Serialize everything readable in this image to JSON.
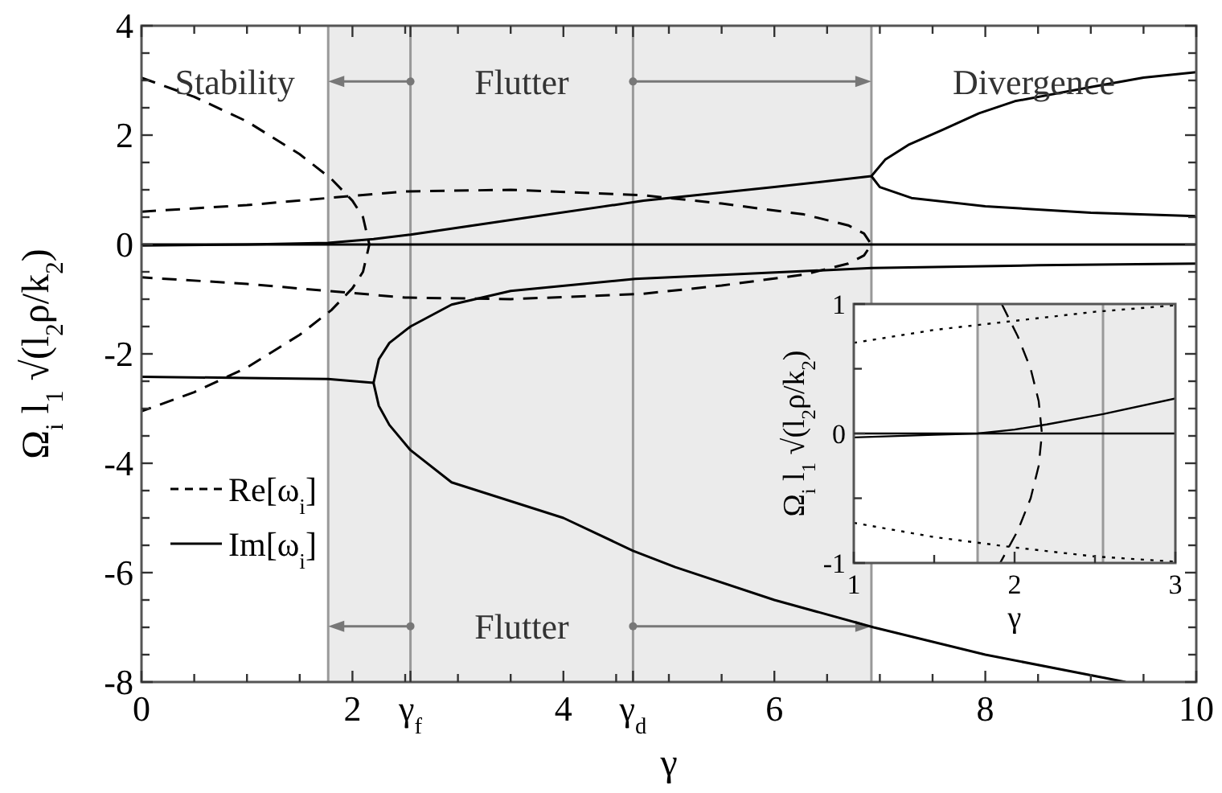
{
  "chart_data": [
    {
      "type": "line",
      "xlabel": "γ",
      "ylabel": "Ω$_{i}$ l$_{1}$ √(l$_{2}$ρ/k$_{2}$)",
      "xlim": [
        0,
        10
      ],
      "ylim": [
        -8,
        4
      ],
      "xticks": [
        0,
        {
          "value": 0.5,
          "label": null
        },
        {
          "value": 1,
          "label": null
        },
        {
          "value": 1.5,
          "label": null
        },
        2,
        {
          "value": 2.5,
          "label": null
        },
        {
          "value": 2.55,
          "label": "γ$_{f}$"
        },
        {
          "value": 3,
          "label": null
        },
        {
          "value": 3.5,
          "label": null
        },
        4,
        {
          "value": 4.5,
          "label": null
        },
        {
          "value": 4.66,
          "label": "γ$_{d}$"
        },
        {
          "value": 5,
          "label": null
        },
        {
          "value": 5.5,
          "label": null
        },
        6,
        {
          "value": 6.5,
          "label": null
        },
        {
          "value": 7,
          "label": null
        },
        {
          "value": 7.5,
          "label": null
        },
        8,
        {
          "value": 8.5,
          "label": null
        },
        {
          "value": 9,
          "label": null
        },
        {
          "value": 9.5,
          "label": null
        },
        10
      ],
      "yticks": [
        -8,
        {
          "value": -7.5,
          "label": null
        },
        {
          "value": -7,
          "label": null
        },
        {
          "value": -6.5,
          "label": null
        },
        -6,
        {
          "value": -5.5,
          "label": null
        },
        {
          "value": -5,
          "label": null
        },
        {
          "value": -4.5,
          "label": null
        },
        -4,
        {
          "value": -3.5,
          "label": null
        },
        {
          "value": -3,
          "label": null
        },
        {
          "value": -2.5,
          "label": null
        },
        -2,
        {
          "value": -1.5,
          "label": null
        },
        {
          "value": -1,
          "label": null
        },
        {
          "value": -0.5,
          "label": null
        },
        0,
        {
          "value": 0.5,
          "label": null
        },
        {
          "value": 1,
          "label": null
        },
        {
          "value": 1.5,
          "label": null
        },
        2,
        {
          "value": 2.5,
          "label": null
        },
        {
          "value": 3,
          "label": null
        },
        {
          "value": 3.5,
          "label": null
        },
        4
      ],
      "grid": false,
      "legend": "bottom left",
      "bands": [
        {
          "axis": "x",
          "from": 1.77,
          "to": 6.92,
          "color": "#ebebeb"
        }
      ],
      "ref_lines": [
        {
          "axis": "x",
          "value": 1.77,
          "color": "#999999"
        },
        {
          "axis": "x",
          "value": 2.55,
          "color": "#999999"
        },
        {
          "axis": "x",
          "value": 4.66,
          "color": "#999999"
        },
        {
          "axis": "x",
          "value": 6.92,
          "color": "#999999"
        }
      ],
      "annotations": [
        "Stability",
        "Flutter",
        "Divergence",
        "Flutter"
      ],
      "series": [
        {
          "name": "Re[ω$_{i}$]",
          "color": "#000000",
          "line_style": "dashed",
          "x": [
            0,
            0.5,
            1,
            1.5,
            1.8,
            2,
            2.1,
            2.16,
            2.1,
            2,
            1.8,
            1.5,
            1,
            0.5,
            0
          ],
          "values": [
            3.05,
            2.7,
            2.25,
            1.65,
            1.2,
            0.8,
            0.5,
            0,
            -0.5,
            -0.8,
            -1.2,
            -1.65,
            -2.25,
            -2.7,
            -3.05
          ]
        },
        {
          "color": "#000000",
          "line_style": "dashed",
          "x": [
            0,
            1,
            1.77,
            2.5,
            3.5,
            4.76,
            5.5,
            6.28,
            6.7,
            6.85,
            6.92,
            6.85,
            6.7,
            6.28,
            5.5,
            4.76,
            3.5,
            2.5,
            1.77,
            1,
            0
          ],
          "values": [
            0.6,
            0.72,
            0.85,
            0.97,
            1,
            0.9,
            0.75,
            0.55,
            0.35,
            0.2,
            0,
            -0.2,
            -0.35,
            -0.55,
            -0.75,
            -0.9,
            -1,
            -0.97,
            -0.85,
            -0.72,
            -0.6
          ]
        },
        {
          "name": "Im[ω$_{i}$]",
          "color": "#000000",
          "line_style": "solid",
          "x": [
            0,
            10
          ],
          "values": [
            0,
            0
          ]
        },
        {
          "color": "#000000",
          "line_style": "solid",
          "x": [
            0,
            1,
            1.77,
            2.2,
            2.55,
            3.5,
            4.76,
            6,
            6.92,
            7.05,
            7.27,
            7.6,
            7.94,
            8.28,
            9,
            9.5,
            10
          ],
          "values": [
            -0.02,
            0,
            0.03,
            0.1,
            0.18,
            0.45,
            0.8,
            1.05,
            1.25,
            1.55,
            1.82,
            2.1,
            2.4,
            2.62,
            2.88,
            3.05,
            3.15
          ]
        },
        {
          "color": "#000000",
          "line_style": "solid",
          "x": [
            6.92,
            7,
            7.3,
            8,
            9,
            10
          ],
          "values": [
            1.25,
            1.05,
            0.85,
            0.7,
            0.58,
            0.52
          ]
        },
        {
          "color": "#000000",
          "line_style": "solid",
          "x": [
            0,
            1,
            1.77,
            2.2,
            2.25,
            2.35,
            2.55,
            2.94,
            3.5,
            4.68,
            6.92,
            8.5,
            10
          ],
          "values": [
            -2.42,
            -2.44,
            -2.46,
            -2.53,
            -2.1,
            -1.8,
            -1.5,
            -1.1,
            -0.85,
            -0.63,
            -0.43,
            -0.38,
            -0.35
          ]
        },
        {
          "color": "#000000",
          "line_style": "solid",
          "x": [
            2.2,
            2.25,
            2.35,
            2.55,
            2.94,
            4,
            4.66,
            5.06,
            6,
            6.94,
            8,
            9.33
          ],
          "values": [
            -2.53,
            -2.95,
            -3.3,
            -3.76,
            -4.35,
            -5,
            -5.6,
            -5.9,
            -6.5,
            -7,
            -7.5,
            -8
          ]
        }
      ]
    },
    {
      "type": "line",
      "xlabel": "γ",
      "ylabel": "Ω$_{i}$ l$_{1}$ √(l$_{2}$ρ/k$_{2}$)",
      "xlim": [
        1,
        3
      ],
      "ylim": [
        -1,
        1
      ],
      "xticks": [
        1,
        {
          "value": 1.5,
          "label": null
        },
        2,
        {
          "value": 2.5,
          "label": null
        },
        3
      ],
      "yticks": [
        -1,
        {
          "value": -0.5,
          "label": null
        },
        0,
        {
          "value": 0.5,
          "label": null
        },
        1
      ],
      "grid": false,
      "bands": [
        {
          "axis": "x",
          "from": 1.77,
          "to": 3,
          "color": "#ebebeb"
        }
      ],
      "ref_lines": [
        {
          "axis": "x",
          "value": 1.77,
          "color": "#999999"
        },
        {
          "axis": "x",
          "value": 2.55,
          "color": "#999999"
        }
      ],
      "series": [
        {
          "color": "#000000",
          "line_style": "dotted",
          "x": [
            1,
            1.5,
            2,
            2.5,
            3
          ],
          "values": [
            0.7,
            0.8,
            0.87,
            0.94,
            0.99
          ]
        },
        {
          "color": "#000000",
          "line_style": "dotted",
          "x": [
            1,
            1.5,
            2,
            2.5,
            3
          ],
          "values": [
            -0.69,
            -0.8,
            -0.88,
            -0.95,
            -0.99
          ]
        },
        {
          "color": "#000000",
          "line_style": "dashed",
          "x": [
            1.92,
            2.02,
            2.1,
            2.15,
            2.17,
            2.15,
            2.1,
            2.02,
            1.91
          ],
          "values": [
            1,
            0.75,
            0.5,
            0.25,
            0,
            -0.25,
            -0.5,
            -0.75,
            -1
          ]
        },
        {
          "color": "#000000",
          "line_style": "solid",
          "x": [
            1,
            3
          ],
          "values": [
            0,
            0
          ]
        },
        {
          "color": "#000000",
          "line_style": "solid",
          "x": [
            1,
            1.5,
            1.77,
            2,
            2.2,
            2.55,
            3
          ],
          "values": [
            -0.03,
            -0.01,
            0,
            0.03,
            0.07,
            0.15,
            0.27
          ]
        }
      ]
    }
  ]
}
